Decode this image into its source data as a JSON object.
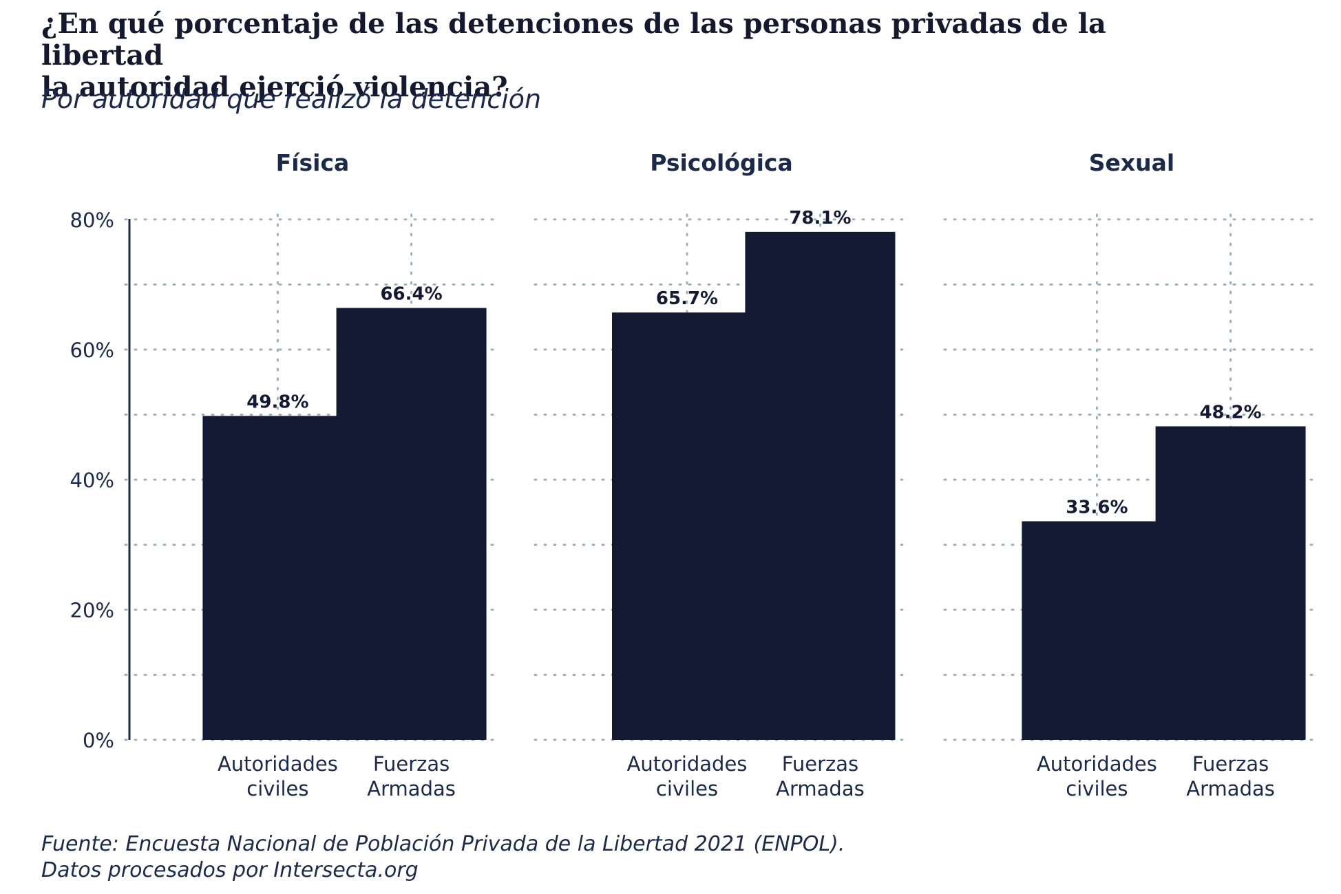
{
  "title_lines": [
    "¿En qué porcentaje de las detenciones de las personas privadas de la libertad",
    "la autoridad ejerció violencia?"
  ],
  "subtitle": "Por autoridad que realizó la detención",
  "caption_lines": [
    "Fuente: Encuesta Nacional de Población Privada de la Libertad 2021 (ENPOL).",
    "Datos procesados por Intersecta.org"
  ],
  "colors": {
    "bar": "#141a33",
    "grid": "#9fb0b8",
    "text": "#1b2a4a",
    "axis": "#1b2a4a"
  },
  "chart_data": {
    "type": "bar",
    "facets": [
      "Física",
      "Psicológica",
      "Sexual"
    ],
    "categories": [
      [
        "Autoridades",
        "civiles"
      ],
      [
        "Fuerzas",
        "Armadas"
      ]
    ],
    "series": [
      {
        "facet": "Física",
        "values": [
          49.8,
          66.4
        ],
        "labels": [
          "49.8%",
          "66.4%"
        ]
      },
      {
        "facet": "Psicológica",
        "values": [
          65.7,
          78.1
        ],
        "labels": [
          "65.7%",
          "78.1%"
        ]
      },
      {
        "facet": "Sexual",
        "values": [
          33.6,
          48.2
        ],
        "labels": [
          "33.6%",
          "48.2%"
        ]
      }
    ],
    "ylim": [
      0,
      82
    ],
    "yticks": [
      0,
      20,
      40,
      60,
      80
    ],
    "ytick_labels": [
      "0%",
      "20%",
      "40%",
      "60%",
      "80%"
    ],
    "minor_gridlines": [
      10,
      30,
      50,
      70
    ],
    "grid": true
  }
}
